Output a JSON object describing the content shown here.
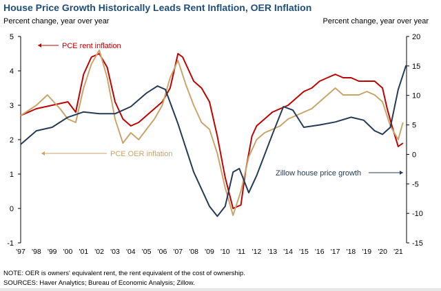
{
  "chart_data": {
    "type": "line",
    "title": "House Price Growth Historically Leads Rent Inflation, OER Inflation",
    "ylabel_left": "Percent change, year over year",
    "ylabel_right": "Percent change, year over year",
    "ylim_left": [
      -1,
      5
    ],
    "yticks_left": [
      -1,
      0,
      1,
      2,
      3,
      4,
      5
    ],
    "ylim_right": [
      -15,
      20
    ],
    "yticks_right": [
      -15,
      -10,
      -5,
      0,
      5,
      10,
      15,
      20
    ],
    "xlim": [
      1997,
      2021.6
    ],
    "xtick_labels": [
      "'97",
      "'98",
      "'99",
      "'00",
      "'01",
      "'02",
      "'03",
      "'04",
      "'05",
      "'06",
      "'07",
      "'08",
      "'09",
      "'10",
      "'11",
      "'12",
      "'13",
      "'14",
      "'15",
      "'16",
      "'17",
      "'18",
      "'19",
      "'20",
      "'21"
    ],
    "grid": false,
    "series": [
      {
        "name": "PCE rent inflation",
        "axis": "left",
        "color": "#c00000",
        "x": [
          1997,
          1998,
          1999,
          2000,
          2000.5,
          2001,
          2001.5,
          2002,
          2002.5,
          2003,
          2003.5,
          2004,
          2004.5,
          2005,
          2005.5,
          2006,
          2006.5,
          2007,
          2007.3,
          2008,
          2008.5,
          2009,
          2009.5,
          2010,
          2010.5,
          2011,
          2011.3,
          2011.7,
          2012,
          2012.5,
          2013,
          2013.5,
          2014,
          2014.5,
          2015,
          2015.5,
          2016,
          2016.5,
          2017,
          2017.5,
          2018,
          2018.5,
          2019,
          2019.5,
          2020,
          2020.3,
          2020.6,
          2021,
          2021.3
        ],
        "y": [
          2.7,
          2.9,
          3.0,
          3.1,
          2.8,
          3.9,
          4.4,
          4.5,
          4.1,
          3.1,
          2.6,
          2.4,
          2.5,
          2.7,
          2.9,
          3.1,
          3.5,
          4.5,
          4.4,
          3.7,
          3.5,
          3.1,
          2.1,
          0.9,
          0.0,
          0.1,
          1.1,
          2.1,
          2.4,
          2.6,
          2.8,
          2.9,
          3.0,
          3.2,
          3.4,
          3.5,
          3.7,
          3.8,
          3.9,
          3.8,
          3.8,
          3.7,
          3.7,
          3.7,
          3.5,
          2.9,
          2.4,
          1.8,
          1.9
        ]
      },
      {
        "name": "PCE OER inflation",
        "axis": "left",
        "color": "#c9a46a",
        "x": [
          1997,
          1998,
          1998.7,
          1999.5,
          2000,
          2000.5,
          2001,
          2001.5,
          2002,
          2002.5,
          2003,
          2003.5,
          2004,
          2004.5,
          2005,
          2005.5,
          2006,
          2006.5,
          2007,
          2007.5,
          2008,
          2008.5,
          2009,
          2009.5,
          2010,
          2010.5,
          2011,
          2011.5,
          2012,
          2012.5,
          2013,
          2013.5,
          2014,
          2014.5,
          2015,
          2015.5,
          2016,
          2016.5,
          2017,
          2017.5,
          2018,
          2018.5,
          2019,
          2019.5,
          2020,
          2020.5,
          2021,
          2021.3
        ],
        "y": [
          2.7,
          3.0,
          3.3,
          2.9,
          2.6,
          2.5,
          3.5,
          4.2,
          4.6,
          3.8,
          2.6,
          1.9,
          2.2,
          2.0,
          2.3,
          2.6,
          3.0,
          3.8,
          4.3,
          3.6,
          3.0,
          2.5,
          2.3,
          1.6,
          0.6,
          -0.2,
          0.5,
          1.5,
          2.0,
          2.2,
          2.3,
          2.4,
          2.6,
          2.7,
          2.8,
          2.9,
          3.1,
          3.3,
          3.5,
          3.3,
          3.3,
          3.3,
          3.4,
          3.3,
          3.1,
          2.4,
          2.0,
          2.5
        ]
      },
      {
        "name": "Zillow house price growth",
        "axis": "right",
        "color": "#243a55",
        "x": [
          1997,
          1998,
          1999,
          2000,
          2001,
          2002,
          2003,
          2004,
          2005,
          2005.7,
          2006.2,
          2007,
          2008,
          2009,
          2009.5,
          2010,
          2010.5,
          2010.9,
          2011.5,
          2012,
          2013,
          2013.7,
          2014.3,
          2015,
          2016,
          2017,
          2018,
          2018.8,
          2019.5,
          2020,
          2020.5,
          2021,
          2021.5
        ],
        "y": [
          1.7,
          4.0,
          4.6,
          6.3,
          7.2,
          6.9,
          6.9,
          8.1,
          10.4,
          11.6,
          11.0,
          5.2,
          -3.0,
          -8.8,
          -10.5,
          -8.8,
          -3.0,
          -2.4,
          -6.5,
          -3.6,
          3.4,
          8.1,
          7.5,
          4.6,
          5.0,
          5.5,
          6.3,
          5.8,
          4.0,
          3.4,
          4.6,
          11.0,
          15.1
        ]
      }
    ],
    "annotations": [
      "PCE rent inflation",
      "PCE OER inflation",
      "Zillow house price growth"
    ]
  },
  "note": "NOTE: OER is owners' equivalent rent, the rent equivalent of the cost of ownership.",
  "sources": "SOURCES: Haver Analytics; Bureau of Economic Analysis; Zillow."
}
